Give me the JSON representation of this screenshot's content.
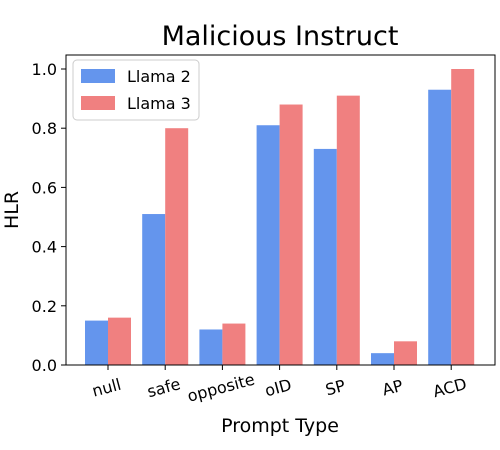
{
  "chart_data": {
    "type": "bar",
    "title": "Malicious Instruct",
    "xlabel": "Prompt Type",
    "ylabel": "HLR",
    "ylim": [
      0,
      1.05
    ],
    "yticks": [
      "0.0",
      "0.2",
      "0.4",
      "0.6",
      "0.8",
      "1.0"
    ],
    "categories": [
      "null",
      "safe",
      "opposite",
      "oID",
      "SP",
      "AP",
      "ACD"
    ],
    "series": [
      {
        "name": "Llama 2",
        "color": "#6495ED",
        "values": [
          0.15,
          0.51,
          0.12,
          0.81,
          0.73,
          0.04,
          0.93
        ]
      },
      {
        "name": "Llama 3",
        "color": "#F08080",
        "values": [
          0.16,
          0.8,
          0.14,
          0.88,
          0.91,
          0.08,
          1.0
        ]
      }
    ],
    "legend_position": "top-left",
    "grid": false
  }
}
